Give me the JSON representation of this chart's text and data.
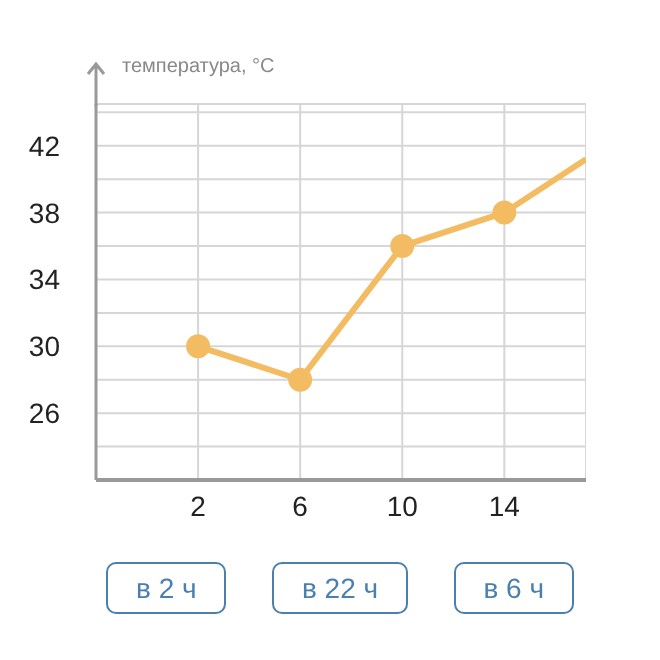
{
  "chart_data": {
    "type": "line",
    "ylabel": "температура, °C",
    "x": [
      2,
      6,
      10,
      14,
      17.2
    ],
    "series": [
      {
        "color": "#f4bc62",
        "values": [
          30,
          28,
          36,
          38,
          41.2
        ]
      }
    ],
    "xlim": [
      -2,
      17.2
    ],
    "xticks": [
      2,
      6,
      10,
      14
    ],
    "ylim": [
      22,
      44.5
    ],
    "yticks": [
      {
        "value": 24,
        "label": null
      },
      26,
      {
        "value": 28,
        "label": null
      },
      30,
      {
        "value": 32,
        "label": null
      },
      34,
      {
        "value": 36,
        "label": null
      },
      38,
      {
        "value": 40,
        "label": null
      },
      42,
      {
        "value": 44,
        "label": null
      }
    ],
    "grid": true,
    "marker": "circle",
    "line_style": "solid",
    "legend": false,
    "annotations": [
      "в 2 ч",
      "в 22 ч",
      "в 6 ч"
    ]
  }
}
